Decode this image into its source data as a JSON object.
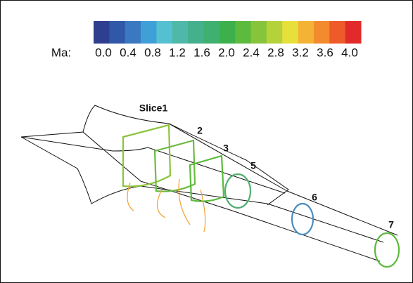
{
  "colorbar": {
    "label": "Ma:",
    "range": [
      0,
      4
    ],
    "ticks": [
      {
        "value": 0,
        "label": "0.0"
      },
      0.4,
      0.8,
      1.2,
      1.6,
      {
        "value": 2,
        "label": "2.0"
      },
      2.4,
      2.8,
      3.2,
      3.6,
      {
        "value": 4,
        "label": "4.0"
      }
    ],
    "colors": [
      "#2e3f8f",
      "#2f58a8",
      "#3a78c2",
      "#3fa0d8",
      "#55c0d0",
      "#4fb8a8",
      "#45b08c",
      "#3fb070",
      "#3cb04a",
      "#5cba3c",
      "#86c43c",
      "#b6d23a",
      "#e8e03a",
      "#f4b334",
      "#f28a2e",
      "#ee5a2a",
      "#e32a2a"
    ]
  },
  "slices": [
    {
      "label": "Slice1"
    },
    {
      "label": "2"
    },
    {
      "label": "3"
    },
    {
      "label": "5"
    },
    {
      "label": "6"
    },
    {
      "label": "7"
    }
  ]
}
